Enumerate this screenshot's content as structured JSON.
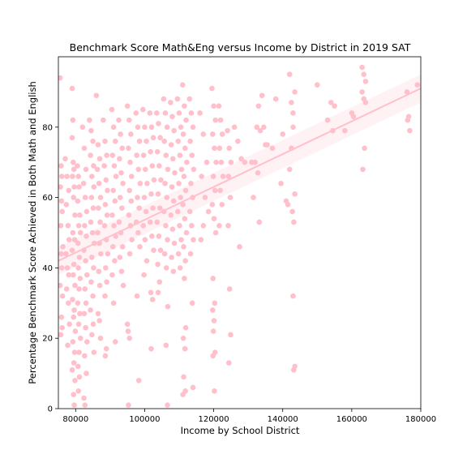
{
  "chart_data": {
    "type": "scatter",
    "title": "Benchmark Score Math&Eng versus Income by District in 2019 SAT",
    "xlabel": "Income by School District",
    "ylabel": "Percentage Benchmark Score Achieved in Both Math and English",
    "xlim": [
      75000,
      180000
    ],
    "ylim": [
      0,
      100
    ],
    "xticks": [
      80000,
      100000,
      120000,
      140000,
      160000,
      180000
    ],
    "yticks": [
      0,
      20,
      40,
      60,
      80
    ],
    "grid": false,
    "colors": {
      "points": "#ffc0cb",
      "regression": "#ffc0cb",
      "band": "#ffc0cb"
    },
    "regression": {
      "x": [
        75000,
        180000
      ],
      "y": [
        42,
        91
      ],
      "ci_low": [
        38,
        87
      ],
      "ci_high": [
        46,
        95
      ]
    },
    "points": [
      [
        75500,
        94
      ],
      [
        75800,
        69
      ],
      [
        76000,
        66
      ],
      [
        75600,
        63
      ],
      [
        75900,
        59
      ],
      [
        76100,
        56
      ],
      [
        75700,
        52
      ],
      [
        76300,
        46
      ],
      [
        75800,
        44
      ],
      [
        76000,
        40
      ],
      [
        75500,
        35
      ],
      [
        76200,
        32
      ],
      [
        75900,
        26
      ],
      [
        76100,
        23
      ],
      [
        75700,
        21
      ],
      [
        77000,
        71
      ],
      [
        77500,
        66
      ],
      [
        78000,
        62
      ],
      [
        77300,
        58
      ],
      [
        77800,
        52
      ],
      [
        78100,
        48
      ],
      [
        77200,
        44
      ],
      [
        77600,
        40
      ],
      [
        78000,
        38
      ],
      [
        77400,
        34
      ],
      [
        77900,
        30
      ],
      [
        78200,
        24
      ],
      [
        77700,
        18
      ],
      [
        79000,
        91
      ],
      [
        79200,
        82
      ],
      [
        79000,
        77
      ],
      [
        79300,
        70
      ],
      [
        79500,
        68
      ],
      [
        79100,
        66
      ],
      [
        79600,
        63
      ],
      [
        79400,
        60
      ],
      [
        79800,
        55
      ],
      [
        79200,
        50
      ],
      [
        79700,
        48
      ],
      [
        79000,
        45
      ],
      [
        79500,
        41
      ],
      [
        79300,
        38
      ],
      [
        79800,
        35
      ],
      [
        79100,
        31
      ],
      [
        79600,
        28
      ],
      [
        79400,
        26
      ],
      [
        79900,
        22
      ],
      [
        79200,
        19
      ],
      [
        79700,
        16
      ],
      [
        79500,
        13
      ],
      [
        79000,
        11
      ],
      [
        79800,
        8
      ],
      [
        79400,
        4
      ],
      [
        79600,
        1
      ],
      [
        80500,
        69
      ],
      [
        80800,
        66
      ],
      [
        81000,
        63
      ],
      [
        80600,
        59
      ],
      [
        81200,
        55
      ],
      [
        80900,
        52
      ],
      [
        81400,
        50
      ],
      [
        80700,
        47
      ],
      [
        81100,
        43
      ],
      [
        80800,
        40
      ],
      [
        81300,
        37
      ],
      [
        81000,
        34
      ],
      [
        80600,
        30
      ],
      [
        81200,
        27
      ],
      [
        80900,
        24
      ],
      [
        81400,
        20
      ],
      [
        81000,
        16
      ],
      [
        80700,
        12
      ],
      [
        81100,
        9
      ],
      [
        80800,
        5
      ],
      [
        82000,
        80
      ],
      [
        82500,
        74
      ],
      [
        83000,
        68
      ],
      [
        82300,
        64
      ],
      [
        82800,
        60
      ],
      [
        83200,
        56
      ],
      [
        82600,
        52
      ],
      [
        83100,
        49
      ],
      [
        82400,
        45
      ],
      [
        82900,
        42
      ],
      [
        83300,
        38
      ],
      [
        82700,
        34
      ],
      [
        83000,
        30
      ],
      [
        82500,
        27
      ],
      [
        82900,
        23
      ],
      [
        83300,
        19
      ],
      [
        82600,
        15
      ],
      [
        83100,
        10
      ],
      [
        82400,
        3
      ],
      [
        82700,
        1
      ],
      [
        84000,
        82
      ],
      [
        84500,
        79
      ],
      [
        85000,
        76
      ],
      [
        84300,
        72
      ],
      [
        85200,
        69
      ],
      [
        84700,
        66
      ],
      [
        85300,
        63
      ],
      [
        84600,
        60
      ],
      [
        85100,
        57
      ],
      [
        84400,
        53
      ],
      [
        84900,
        50
      ],
      [
        85400,
        47
      ],
      [
        84700,
        43
      ],
      [
        85200,
        40
      ],
      [
        84500,
        36
      ],
      [
        85000,
        32
      ],
      [
        84300,
        28
      ],
      [
        85100,
        24
      ],
      [
        84700,
        21
      ],
      [
        85300,
        16
      ],
      [
        86000,
        89
      ],
      [
        86500,
        75
      ],
      [
        87000,
        71
      ],
      [
        86300,
        68
      ],
      [
        86800,
        64
      ],
      [
        87200,
        60
      ],
      [
        86600,
        57
      ],
      [
        87100,
        53
      ],
      [
        86400,
        50
      ],
      [
        86900,
        47
      ],
      [
        87300,
        44
      ],
      [
        86700,
        39
      ],
      [
        87000,
        35
      ],
      [
        86500,
        27
      ],
      [
        86900,
        25
      ],
      [
        87200,
        20
      ],
      [
        88000,
        82
      ],
      [
        88500,
        76
      ],
      [
        89000,
        72
      ],
      [
        88300,
        69
      ],
      [
        88800,
        65
      ],
      [
        89200,
        62
      ],
      [
        88600,
        58
      ],
      [
        89100,
        55
      ],
      [
        88400,
        52
      ],
      [
        88900,
        48
      ],
      [
        89300,
        44
      ],
      [
        88700,
        40
      ],
      [
        89000,
        36
      ],
      [
        88500,
        32
      ],
      [
        88900,
        17
      ],
      [
        88600,
        15
      ],
      [
        90500,
        85
      ],
      [
        91000,
        80
      ],
      [
        91500,
        76
      ],
      [
        90700,
        72
      ],
      [
        91200,
        69
      ],
      [
        91700,
        66
      ],
      [
        90900,
        62
      ],
      [
        91400,
        59
      ],
      [
        90600,
        55
      ],
      [
        91100,
        52
      ],
      [
        91600,
        49
      ],
      [
        90800,
        46
      ],
      [
        91300,
        42
      ],
      [
        90600,
        38
      ],
      [
        91000,
        30
      ],
      [
        91500,
        19
      ],
      [
        92500,
        82
      ],
      [
        93000,
        78
      ],
      [
        93500,
        74
      ],
      [
        92700,
        71
      ],
      [
        93200,
        67
      ],
      [
        93700,
        64
      ],
      [
        92900,
        60
      ],
      [
        93400,
        57
      ],
      [
        92600,
        53
      ],
      [
        93100,
        50
      ],
      [
        93600,
        46
      ],
      [
        92800,
        43
      ],
      [
        93300,
        39
      ],
      [
        93800,
        35
      ],
      [
        95000,
        86
      ],
      [
        95500,
        82
      ],
      [
        96000,
        78
      ],
      [
        95300,
        74
      ],
      [
        95800,
        70
      ],
      [
        96200,
        66
      ],
      [
        95600,
        62
      ],
      [
        96100,
        59
      ],
      [
        95400,
        55
      ],
      [
        95900,
        52
      ],
      [
        96300,
        48
      ],
      [
        95700,
        44
      ],
      [
        95200,
        22
      ],
      [
        95600,
        20
      ],
      [
        95000,
        24
      ],
      [
        95300,
        1
      ],
      [
        97500,
        84
      ],
      [
        98000,
        80
      ],
      [
        98500,
        76
      ],
      [
        97700,
        72
      ],
      [
        98200,
        68
      ],
      [
        98700,
        64
      ],
      [
        97900,
        60
      ],
      [
        98400,
        57
      ],
      [
        97600,
        53
      ],
      [
        98100,
        50
      ],
      [
        98600,
        46
      ],
      [
        97800,
        32
      ],
      [
        98300,
        8
      ],
      [
        99500,
        85
      ],
      [
        100000,
        80
      ],
      [
        100500,
        76
      ],
      [
        99700,
        72
      ],
      [
        100200,
        68
      ],
      [
        100700,
        64
      ],
      [
        99900,
        60
      ],
      [
        100400,
        56
      ],
      [
        99600,
        52
      ],
      [
        100100,
        48
      ],
      [
        100600,
        42
      ],
      [
        99800,
        38
      ],
      [
        101500,
        84
      ],
      [
        102000,
        80
      ],
      [
        102500,
        77
      ],
      [
        101700,
        73
      ],
      [
        102200,
        69
      ],
      [
        102700,
        65
      ],
      [
        101900,
        61
      ],
      [
        102400,
        57
      ],
      [
        101600,
        53
      ],
      [
        102100,
        49
      ],
      [
        102600,
        45
      ],
      [
        101800,
        33
      ],
      [
        102300,
        31
      ],
      [
        101900,
        17
      ],
      [
        103500,
        84
      ],
      [
        104000,
        81
      ],
      [
        104500,
        77
      ],
      [
        103700,
        73
      ],
      [
        104200,
        69
      ],
      [
        104700,
        65
      ],
      [
        103900,
        61
      ],
      [
        104400,
        57
      ],
      [
        103600,
        53
      ],
      [
        104100,
        49
      ],
      [
        104600,
        45
      ],
      [
        103800,
        41
      ],
      [
        104300,
        36
      ],
      [
        103900,
        33
      ],
      [
        105500,
        88
      ],
      [
        106000,
        84
      ],
      [
        106500,
        80
      ],
      [
        105700,
        76
      ],
      [
        106200,
        72
      ],
      [
        106700,
        68
      ],
      [
        105900,
        64
      ],
      [
        106400,
        60
      ],
      [
        105600,
        56
      ],
      [
        106100,
        52
      ],
      [
        106600,
        48
      ],
      [
        105800,
        44
      ],
      [
        106300,
        40
      ],
      [
        106700,
        29
      ],
      [
        106200,
        18
      ],
      [
        106600,
        1
      ],
      [
        107500,
        87
      ],
      [
        108000,
        83
      ],
      [
        108500,
        79
      ],
      [
        107700,
        75
      ],
      [
        108200,
        71
      ],
      [
        108700,
        67
      ],
      [
        107900,
        63
      ],
      [
        108400,
        59
      ],
      [
        107600,
        55
      ],
      [
        108100,
        51
      ],
      [
        108600,
        47
      ],
      [
        107800,
        43
      ],
      [
        108300,
        39
      ],
      [
        109500,
        88
      ],
      [
        110000,
        84
      ],
      [
        110500,
        80
      ],
      [
        109700,
        76
      ],
      [
        110200,
        72
      ],
      [
        110700,
        68
      ],
      [
        109900,
        64
      ],
      [
        110400,
        60
      ],
      [
        109600,
        56
      ],
      [
        110100,
        52
      ],
      [
        110600,
        48
      ],
      [
        109800,
        44
      ],
      [
        110300,
        40
      ],
      [
        111000,
        92
      ],
      [
        111500,
        86
      ],
      [
        112000,
        82
      ],
      [
        111200,
        78
      ],
      [
        111700,
        74
      ],
      [
        112200,
        70
      ],
      [
        111400,
        66
      ],
      [
        111900,
        62
      ],
      [
        111100,
        58
      ],
      [
        111600,
        54
      ],
      [
        112100,
        50
      ],
      [
        111300,
        46
      ],
      [
        111800,
        42
      ],
      [
        111500,
        37
      ],
      [
        111900,
        23
      ],
      [
        111200,
        20
      ],
      [
        111700,
        17
      ],
      [
        111300,
        9
      ],
      [
        111800,
        5
      ],
      [
        111100,
        4
      ],
      [
        113000,
        88
      ],
      [
        113500,
        84
      ],
      [
        114000,
        80
      ],
      [
        113200,
        76
      ],
      [
        113700,
        72
      ],
      [
        114200,
        68
      ],
      [
        113400,
        64
      ],
      [
        113900,
        60
      ],
      [
        113100,
        56
      ],
      [
        113600,
        52
      ],
      [
        114100,
        48
      ],
      [
        113300,
        44
      ],
      [
        113800,
        30
      ],
      [
        114000,
        6
      ],
      [
        116000,
        84
      ],
      [
        117000,
        78
      ],
      [
        118000,
        70
      ],
      [
        116500,
        66
      ],
      [
        117500,
        60
      ],
      [
        118500,
        56
      ],
      [
        117000,
        52
      ],
      [
        116300,
        48
      ],
      [
        119500,
        91
      ],
      [
        120000,
        86
      ],
      [
        120500,
        82
      ],
      [
        119700,
        78
      ],
      [
        120200,
        74
      ],
      [
        120700,
        70
      ],
      [
        119900,
        66
      ],
      [
        120400,
        62
      ],
      [
        119600,
        58
      ],
      [
        120100,
        54
      ],
      [
        120600,
        50
      ],
      [
        119800,
        37
      ],
      [
        120300,
        30
      ],
      [
        119700,
        28
      ],
      [
        120100,
        25
      ],
      [
        119900,
        22
      ],
      [
        120400,
        16
      ],
      [
        119800,
        15
      ],
      [
        120200,
        5
      ],
      [
        121500,
        86
      ],
      [
        122000,
        82
      ],
      [
        122500,
        78
      ],
      [
        121700,
        74
      ],
      [
        122200,
        70
      ],
      [
        122700,
        66
      ],
      [
        121900,
        62
      ],
      [
        122400,
        58
      ],
      [
        121600,
        52
      ],
      [
        124000,
        79
      ],
      [
        124500,
        74
      ],
      [
        125000,
        70
      ],
      [
        124300,
        66
      ],
      [
        124800,
        60
      ],
      [
        124200,
        52
      ],
      [
        124600,
        34
      ],
      [
        124900,
        21
      ],
      [
        124400,
        13
      ],
      [
        126000,
        80
      ],
      [
        127000,
        76
      ],
      [
        128000,
        71
      ],
      [
        127500,
        46
      ],
      [
        129000,
        70
      ],
      [
        131000,
        70
      ],
      [
        131500,
        60
      ],
      [
        132500,
        80
      ],
      [
        133000,
        86
      ],
      [
        133500,
        79
      ],
      [
        132000,
        70
      ],
      [
        132800,
        67
      ],
      [
        133200,
        53
      ],
      [
        134000,
        89
      ],
      [
        134500,
        80
      ],
      [
        135000,
        75
      ],
      [
        135500,
        75
      ],
      [
        137000,
        74
      ],
      [
        138000,
        88
      ],
      [
        139500,
        64
      ],
      [
        140000,
        78
      ],
      [
        141000,
        59
      ],
      [
        141500,
        58
      ],
      [
        142000,
        68
      ],
      [
        142500,
        74
      ],
      [
        142000,
        95
      ],
      [
        142500,
        87
      ],
      [
        143000,
        84
      ],
      [
        143500,
        90
      ],
      [
        143000,
        80
      ],
      [
        143500,
        61
      ],
      [
        142800,
        56
      ],
      [
        143200,
        53
      ],
      [
        143000,
        32
      ],
      [
        143500,
        12
      ],
      [
        143200,
        11
      ],
      [
        150000,
        92
      ],
      [
        153000,
        82
      ],
      [
        154000,
        87
      ],
      [
        154500,
        79
      ],
      [
        155000,
        86
      ],
      [
        158000,
        79
      ],
      [
        160000,
        84
      ],
      [
        160500,
        83
      ],
      [
        163000,
        97
      ],
      [
        163500,
        95
      ],
      [
        164000,
        93
      ],
      [
        163000,
        90
      ],
      [
        163500,
        88
      ],
      [
        164000,
        87
      ],
      [
        163200,
        68
      ],
      [
        163700,
        74
      ],
      [
        176000,
        90
      ],
      [
        176500,
        83
      ],
      [
        176200,
        82
      ],
      [
        176800,
        79
      ],
      [
        179000,
        92
      ]
    ]
  }
}
